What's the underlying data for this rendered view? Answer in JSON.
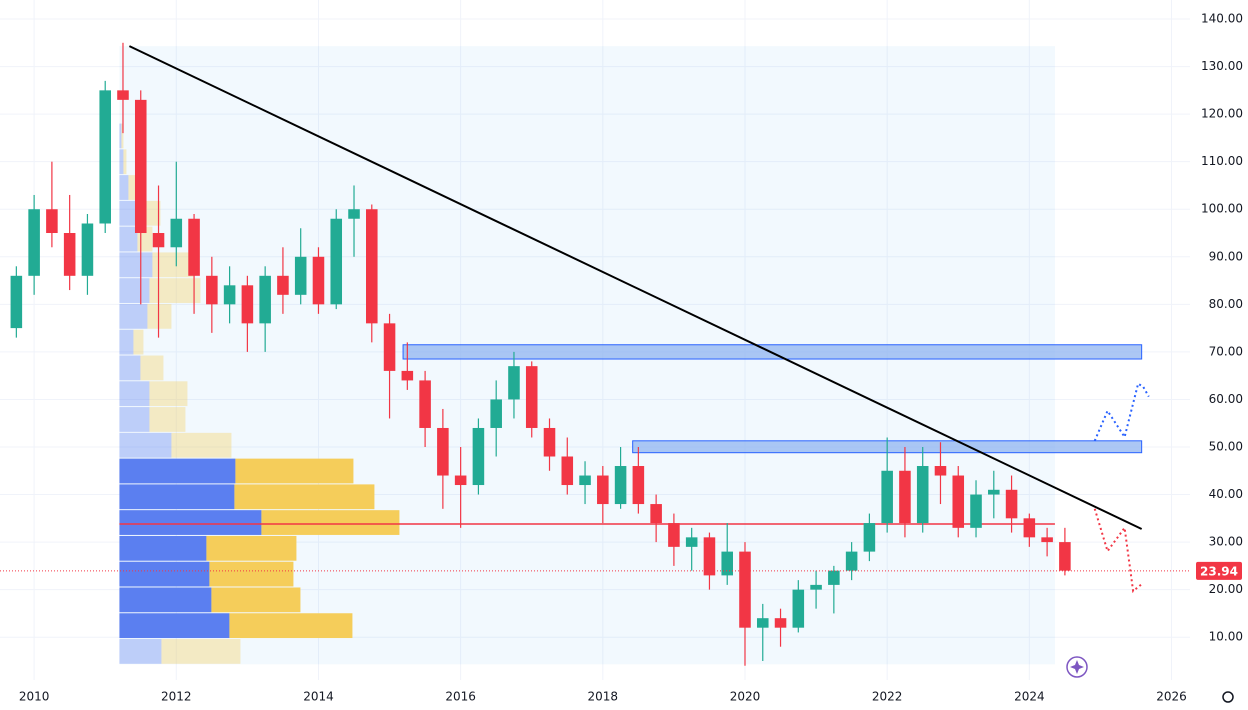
{
  "chart_data": {
    "type": "candlestick",
    "x": [
      2009.75,
      2010.0,
      2010.25,
      2010.5,
      2010.75,
      2011.0,
      2011.25,
      2011.5,
      2011.75,
      2012.0,
      2012.25,
      2012.5,
      2012.75,
      2013.0,
      2013.25,
      2013.5,
      2013.75,
      2014.0,
      2014.25,
      2014.5,
      2014.75,
      2015.0,
      2015.25,
      2015.5,
      2015.75,
      2016.0,
      2016.25,
      2016.5,
      2016.75,
      2017.0,
      2017.25,
      2017.5,
      2017.75,
      2018.0,
      2018.25,
      2018.5,
      2018.75,
      2019.0,
      2019.25,
      2019.5,
      2019.75,
      2020.0,
      2020.25,
      2020.5,
      2020.75,
      2021.0,
      2021.25,
      2021.5,
      2021.75,
      2022.0,
      2022.25,
      2022.5,
      2022.75,
      2023.0,
      2023.25,
      2023.5,
      2023.75,
      2024.0,
      2024.25,
      2024.5
    ],
    "open": [
      75,
      86,
      100,
      95,
      86,
      97,
      125,
      123,
      95,
      92,
      98,
      86,
      80,
      84,
      76,
      86,
      82,
      90,
      80,
      98,
      100,
      76,
      66,
      64,
      54,
      44,
      42,
      54,
      60,
      67,
      54,
      48,
      42,
      44,
      38,
      46,
      38,
      34,
      29,
      31,
      23,
      28,
      12,
      14,
      12,
      20,
      21,
      24,
      28,
      34,
      45,
      34,
      46,
      44,
      33,
      40,
      41,
      35,
      31,
      30
    ],
    "high": [
      88,
      103,
      110,
      103,
      99,
      127,
      135,
      125,
      105,
      110,
      99,
      90,
      88,
      86,
      88,
      92,
      96,
      92,
      100,
      105,
      101,
      78,
      72,
      66,
      58,
      50,
      56,
      64,
      70,
      68,
      56,
      52,
      47,
      46,
      50,
      50,
      40,
      36,
      33,
      32,
      34,
      30,
      17,
      16,
      22,
      24,
      25,
      30,
      36,
      52,
      50,
      50,
      51,
      46,
      43,
      45,
      44,
      36,
      33,
      33
    ],
    "low": [
      73,
      82,
      92,
      83,
      82,
      95,
      116,
      80,
      73,
      88,
      78,
      74,
      76,
      70,
      70,
      78,
      80,
      78,
      79,
      90,
      72,
      56,
      62,
      50,
      37,
      33,
      40,
      48,
      56,
      52,
      45,
      40,
      38,
      34,
      37,
      36,
      30,
      25,
      24,
      20,
      21,
      4,
      5,
      8,
      11,
      16,
      15,
      22,
      26,
      32,
      31,
      32,
      38,
      31,
      31,
      35,
      32,
      29,
      27,
      23
    ],
    "close": [
      86,
      100,
      95,
      86,
      97,
      125,
      123,
      95,
      92,
      98,
      86,
      80,
      84,
      76,
      86,
      82,
      90,
      80,
      98,
      100,
      76,
      66,
      64,
      54,
      44,
      42,
      54,
      60,
      67,
      54,
      48,
      42,
      44,
      38,
      46,
      38,
      34,
      29,
      31,
      23,
      28,
      12,
      14,
      12,
      20,
      21,
      24,
      28,
      34,
      45,
      34,
      46,
      44,
      33,
      40,
      41,
      35,
      31,
      30,
      24
    ],
    "up_color": "#22ab94",
    "down_color": "#f23645",
    "xlim": [
      2009.52,
      2026.26
    ],
    "xticks": [
      2010,
      2012,
      2014,
      2016,
      2018,
      2020,
      2022,
      2024,
      2026
    ],
    "ylim": [
      1,
      144
    ],
    "yticks": [
      {
        "value": 10,
        "label": "10.00"
      },
      {
        "value": 20,
        "label": "20.00"
      },
      {
        "value": 30,
        "label": "30.00"
      },
      {
        "value": 40,
        "label": "40.00"
      },
      {
        "value": 50,
        "label": "50.00"
      },
      {
        "value": 60,
        "label": "60.00"
      },
      {
        "value": 70,
        "label": "70.00"
      },
      {
        "value": 80,
        "label": "80.00"
      },
      {
        "value": 90,
        "label": "90.00"
      },
      {
        "value": 100,
        "label": "100.00"
      },
      {
        "value": 110,
        "label": "110.00"
      },
      {
        "value": 120,
        "label": "120.00"
      },
      {
        "value": 130,
        "label": "130.00"
      },
      {
        "value": 140,
        "label": "140.00"
      }
    ],
    "grid": true,
    "last_price": 23.94,
    "last_price_color": "#f23645",
    "volume_profile": {
      "bins": [
        4.3,
        9.72,
        15.14,
        20.56,
        25.98,
        31.4,
        36.82,
        42.24,
        47.66,
        53.08,
        58.5,
        63.92,
        69.34,
        74.76,
        80.18,
        85.6,
        91.02,
        96.44,
        101.86,
        107.28,
        112.7,
        118.12
      ],
      "buy": [
        42,
        110,
        92,
        90,
        87,
        142,
        115,
        116,
        52,
        30,
        30,
        21,
        14,
        28,
        30,
        33,
        18,
        21,
        9,
        4,
        2
      ],
      "sell": [
        79,
        123,
        89,
        84,
        90,
        138,
        140,
        118,
        60,
        36,
        38,
        23,
        10,
        24,
        51,
        41,
        15,
        20,
        9,
        3,
        2
      ],
      "value_area": [
        9.72,
        47.66
      ],
      "poc": 33.8,
      "poc_color": "#f23645",
      "buy_color": "#5b7ff0",
      "sell_color": "#f5cd5a",
      "x_range": [
        2011.2,
        2024.36
      ],
      "range_high": 134.3
    },
    "trendline": {
      "x": [
        2011.34,
        2025.58
      ],
      "y": [
        134.3,
        32.75
      ],
      "color": "#000000"
    },
    "zones": [
      {
        "x": [
          2015.19,
          2025.58
        ],
        "y": [
          68.5,
          71.5
        ]
      },
      {
        "x": [
          2018.42,
          2025.58
        ],
        "y": [
          48.8,
          51.3
        ]
      }
    ],
    "projections": [
      {
        "color": "#2962ff",
        "x": [
          2024.92,
          2025.1,
          2025.34,
          2025.53,
          2025.6,
          2025.68
        ],
        "y": [
          51.3,
          57.6,
          52.1,
          63.3,
          62.7,
          60.6
        ]
      },
      {
        "color": "#f23645",
        "x": [
          2024.92,
          2025.1,
          2025.34,
          2025.46,
          2025.6
        ],
        "y": [
          37.0,
          28.1,
          33.0,
          19.7,
          21.4
        ]
      }
    ]
  }
}
